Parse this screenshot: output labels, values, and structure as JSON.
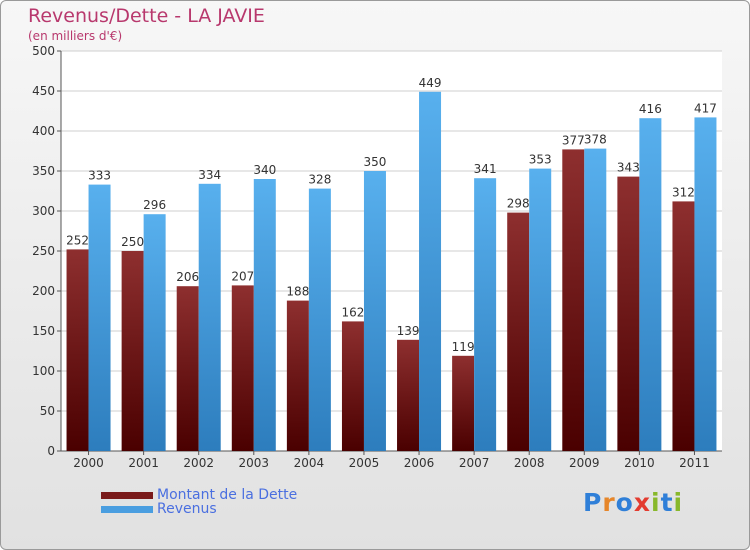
{
  "header": {
    "title": "Revenus/Dette - LA JAVIE",
    "subtitle": "(en milliers d'€)"
  },
  "legend": {
    "items": [
      {
        "label": "Montant de la Dette",
        "color": "#7a1a1a"
      },
      {
        "label": "Revenus",
        "color": "#4a9ee0"
      }
    ]
  },
  "logo": {
    "text": "Proxiti",
    "letter_colors": [
      "#2f7fd8",
      "#e6862a",
      "#2f7fd8",
      "#e33b2f",
      "#88b82b",
      "#2f7fd8",
      "#88b82b"
    ]
  },
  "chart_data": {
    "type": "bar",
    "categories": [
      "2000",
      "2001",
      "2002",
      "2003",
      "2004",
      "2005",
      "2006",
      "2007",
      "2008",
      "2009",
      "2010",
      "2011"
    ],
    "series": [
      {
        "name": "Montant de la Dette",
        "values": [
          252,
          250,
          206,
          207,
          188,
          162,
          139,
          119,
          298,
          377,
          343,
          312
        ],
        "color": "#7a1a1a"
      },
      {
        "name": "Revenus",
        "values": [
          333,
          296,
          334,
          340,
          328,
          350,
          449,
          341,
          353,
          378,
          416,
          417
        ],
        "color": "#4a9ee0"
      }
    ],
    "ylim": [
      0,
      500
    ],
    "yticks": [
      0,
      50,
      100,
      150,
      200,
      250,
      300,
      350,
      400,
      450,
      500
    ],
    "grid": true,
    "legend_position": "bottom-left"
  }
}
